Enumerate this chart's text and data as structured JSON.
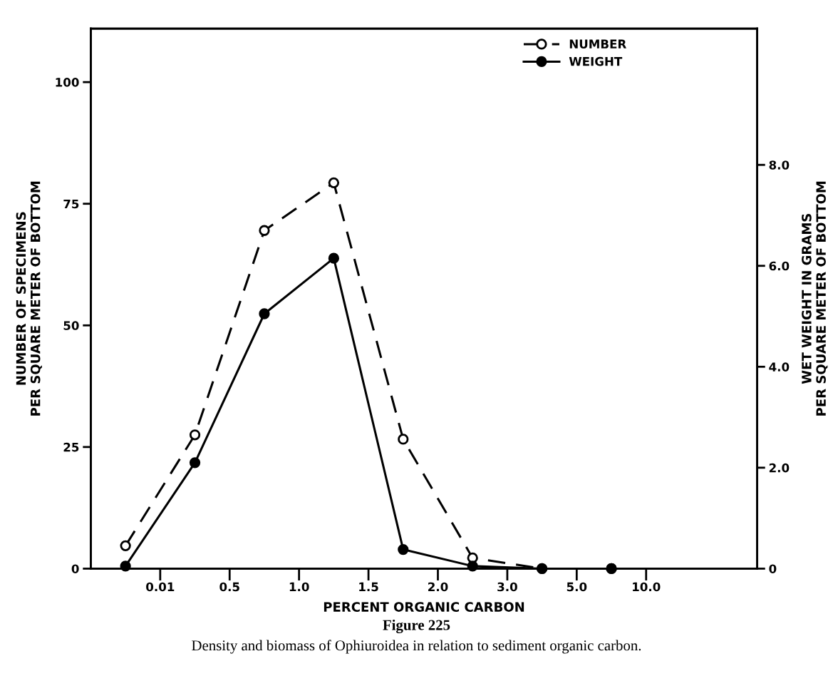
{
  "chart_data": {
    "type": "line",
    "title": "Figure 225",
    "subtitle": "Density and biomass of Ophiuroidea in relation to sediment organic carbon.",
    "xlabel": "PERCENT ORGANIC CARBON",
    "ylabel": "NUMBER OF SPECIMENS\nPER SQUARE METER OF BOTTOM",
    "y2label": "WET WEIGHT IN GRAMS\nPER SQUARE METER OF BOTTOM",
    "categories": [
      null,
      null,
      null,
      null,
      null,
      null,
      null,
      null
    ],
    "annotations": [
      "0.01",
      "0.5",
      "1.0",
      "1.5",
      "2.0",
      "3.0",
      "5.0",
      "10.0"
    ],
    "series": [
      {
        "name": "NUMBER",
        "color": "#000000",
        "values": [
          4.7,
          27.5,
          69.5,
          79.3,
          26.6,
          2.2,
          0,
          0
        ],
        "marker": "circle",
        "line_style": "dashed"
      },
      {
        "name": "WEIGHT",
        "color": "#000000",
        "values": [
          0.05,
          2.1,
          5.05,
          6.15,
          0.38,
          0.05,
          0,
          0
        ],
        "axis": "y2",
        "marker": "circle",
        "line_style": "solid"
      }
    ],
    "ylim": [
      0,
      111
    ],
    "yticks": [
      0,
      25,
      50,
      75,
      100
    ],
    "y2lim": [
      0,
      10.7
    ],
    "y2ticks": [
      {
        "value": 0,
        "label": "0"
      },
      {
        "value": 2,
        "label": "2.0"
      },
      {
        "value": 4,
        "label": "4.0"
      },
      {
        "value": 6,
        "label": "6.0"
      },
      {
        "value": 8,
        "label": "8.0"
      }
    ],
    "grid": false,
    "legend": "top right"
  }
}
